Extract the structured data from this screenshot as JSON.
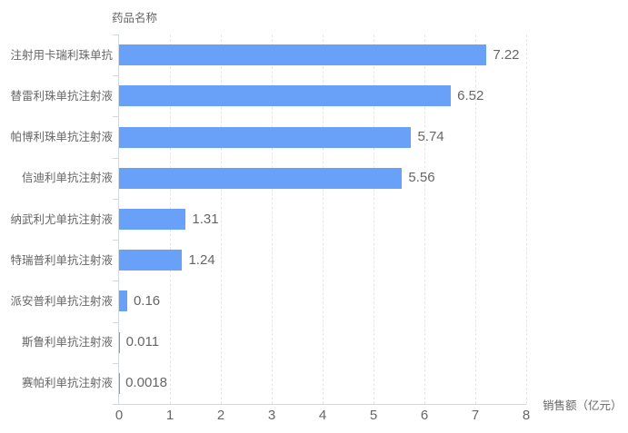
{
  "chart_data": {
    "type": "bar",
    "orientation": "horizontal",
    "ylabel": "药品名称",
    "xlabel": "销售额（亿元）",
    "categories": [
      "注射用卡瑞利珠单抗",
      "替雷利珠单抗注射液",
      "帕博利珠单抗注射液",
      "信迪利单抗注射液",
      "纳武利尤单抗注射液",
      "特瑞普利单抗注射液",
      "派安普利单抗注射液",
      "斯鲁利单抗注射液",
      "赛帕利单抗注射液"
    ],
    "values": [
      7.22,
      6.52,
      5.74,
      5.56,
      1.31,
      1.24,
      0.16,
      0.011,
      0.0018
    ],
    "value_labels": [
      "7.22",
      "6.52",
      "5.74",
      "5.56",
      "1.31",
      "1.24",
      "0.16",
      "0.011",
      "0.0018"
    ],
    "xlim": [
      0,
      8
    ],
    "xticks": [
      0,
      1,
      2,
      3,
      4,
      5,
      6,
      7,
      8
    ],
    "xtick_labels": [
      "0",
      "1",
      "2",
      "3",
      "4",
      "5",
      "6",
      "7",
      "8"
    ],
    "grid": "vertical-dashed",
    "legend": "none",
    "colors": {
      "bar": "#6aa1f8",
      "text": "#666666",
      "axis_line": "#d3d9e0",
      "grid_line": "#e2e7f0",
      "background": "#ffffff"
    }
  }
}
